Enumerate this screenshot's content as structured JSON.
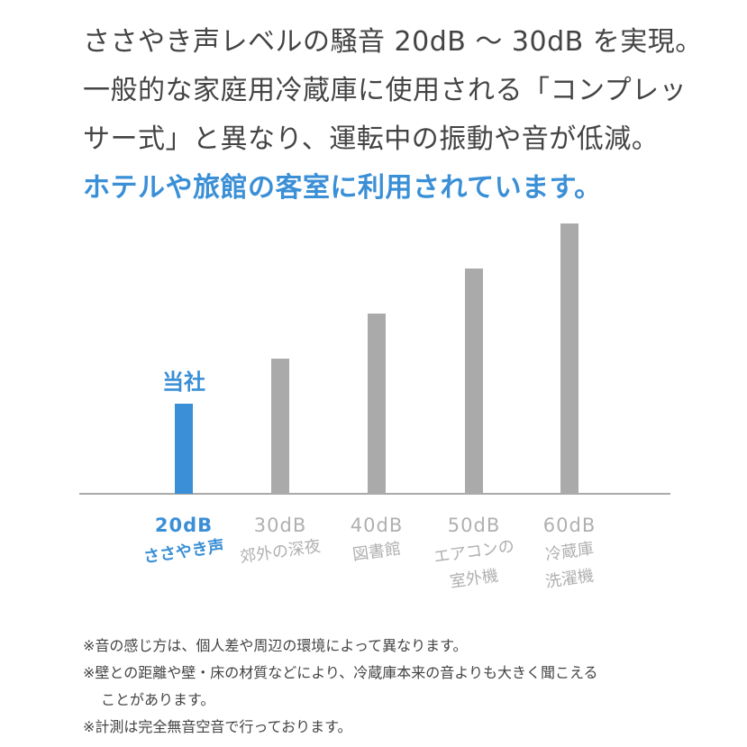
{
  "intro": {
    "lines": [
      "ささやき声レベルの騒音 20dB 〜 30dB を実現。",
      "一般的な家庭用冷蔵庫に使用される「コンプレッ",
      "サー式」と異なり、運転中の振動や音が低減。"
    ],
    "highlight": "ホテルや旅館の客室に利用されています。"
  },
  "chart_data": {
    "type": "bar",
    "categories": [
      "20dB",
      "30dB",
      "40dB",
      "50dB",
      "60dB"
    ],
    "values": [
      20,
      30,
      40,
      50,
      60
    ],
    "descriptions": [
      [
        "ささやき声"
      ],
      [
        "郊外の深夜"
      ],
      [
        "図書館"
      ],
      [
        "エアコンの",
        "室外機"
      ],
      [
        "冷蔵庫",
        "洗濯機"
      ]
    ],
    "annotation": "当社",
    "highlight_index": 0,
    "ylim": [
      0,
      62
    ],
    "grid": false,
    "colors": {
      "highlight": "#3a8fd6",
      "bar": "#aaaaaa",
      "label": "#b0b0b0",
      "axis": "#aaaaaa"
    }
  },
  "notes": {
    "items": [
      "※音の感じ方は、個人差や周辺の環境によって異なります。",
      "※壁との距離や壁・床の材質などにより、冷蔵庫本来の音よりも大きく聞こえる",
      "ことがあります。",
      "※計測は完全無音空音で行っております。"
    ]
  }
}
